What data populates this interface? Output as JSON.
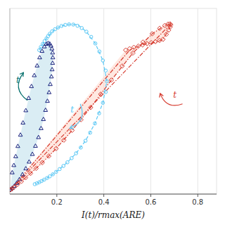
{
  "chart_data": {
    "type": "line",
    "xlabel": "I(t)/rmax(ARE)",
    "xlim": [
      0.0,
      0.88
    ],
    "ylim": [
      -0.02,
      1.05
    ],
    "xticks": [
      0.2,
      0.4,
      0.6,
      0.8
    ],
    "yticks": [],
    "tick_labels": "x",
    "grid": true,
    "series": [
      {
        "type": "area",
        "color": "#ADD8E6",
        "x": [
          0.003,
          0.01,
          0.019,
          0.029,
          0.041,
          0.054,
          0.068,
          0.082,
          0.096,
          0.109,
          0.122,
          0.133,
          0.143,
          0.152,
          0.16,
          0.167,
          0.172,
          0.177,
          0.18,
          0.182,
          0.183,
          0.182,
          0.179,
          0.175,
          0.17,
          0.163,
          0.155,
          0.147,
          0.137,
          0.127,
          0.116,
          0.104,
          0.092,
          0.08,
          0.068,
          0.056,
          0.045,
          0.034,
          0.025,
          0.017,
          0.01,
          0.003
        ],
        "values": [
          0.005,
          0.013,
          0.025,
          0.042,
          0.064,
          0.092,
          0.126,
          0.165,
          0.209,
          0.256,
          0.306,
          0.358,
          0.41,
          0.463,
          0.515,
          0.565,
          0.612,
          0.656,
          0.697,
          0.734,
          0.766,
          0.794,
          0.817,
          0.834,
          0.845,
          0.849,
          0.844,
          0.829,
          0.803,
          0.766,
          0.719,
          0.663,
          0.6,
          0.532,
          0.461,
          0.39,
          0.32,
          0.255,
          0.196,
          0.145,
          0.103,
          0.005
        ]
      },
      {
        "type": "area",
        "color": "#FFCCBC",
        "x": [
          0.003,
          0.01,
          0.02,
          0.033,
          0.049,
          0.067,
          0.088,
          0.112,
          0.138,
          0.166,
          0.197,
          0.23,
          0.265,
          0.303,
          0.344,
          0.387,
          0.432,
          0.478,
          0.524,
          0.567,
          0.606,
          0.638,
          0.66,
          0.674,
          0.682,
          0.682,
          0.685,
          0.683,
          0.676,
          0.666,
          0.652,
          0.637,
          0.62,
          0.602,
          0.584,
          0.565,
          0.547,
          0.528,
          0.51,
          0.493,
          0.003
        ],
        "values": [
          0.005,
          0.012,
          0.022,
          0.036,
          0.053,
          0.074,
          0.099,
          0.128,
          0.161,
          0.199,
          0.242,
          0.291,
          0.347,
          0.409,
          0.479,
          0.556,
          0.637,
          0.718,
          0.793,
          0.856,
          0.904,
          0.935,
          0.952,
          0.96,
          0.961,
          0.961,
          0.956,
          0.944,
          0.925,
          0.901,
          0.872,
          0.865,
          0.859,
          0.853,
          0.847,
          0.84,
          0.833,
          0.826,
          0.818,
          0.81,
          0.005
        ]
      },
      {
        "type": "line",
        "color": "#D63B2F",
        "line_style": "dashdot",
        "x": [
          0.003,
          0.685
        ],
        "values": [
          0.005,
          0.961
        ]
      },
      {
        "type": "line",
        "color": "#D63B2F",
        "line_style": "dashdot",
        "x": [
          0.003,
          0.51
        ],
        "values": [
          0.005,
          0.81
        ]
      },
      {
        "type": "line",
        "color": "#D63B2F",
        "line_style": "dashdot",
        "x": [
          0.003,
          0.02,
          0.049,
          0.088,
          0.138,
          0.197,
          0.265,
          0.344,
          0.432,
          0.524,
          0.606,
          0.66,
          0.682,
          0.685,
          0.676,
          0.652,
          0.62,
          0.584,
          0.547,
          0.51
        ],
        "values": [
          0.005,
          0.022,
          0.053,
          0.099,
          0.161,
          0.242,
          0.347,
          0.479,
          0.637,
          0.793,
          0.904,
          0.952,
          0.961,
          0.961,
          0.925,
          0.872,
          0.853,
          0.847,
          0.833,
          0.81
        ]
      },
      {
        "type": "line",
        "color": "#5BC8F5",
        "line_style": "dashed",
        "x": [
          0.125,
          0.14,
          0.163,
          0.192,
          0.22,
          0.252,
          0.288,
          0.326,
          0.364,
          0.396,
          0.413,
          0.396,
          0.362,
          0.322,
          0.282,
          0.245,
          0.212,
          0.183,
          0.158,
          0.135,
          0.115
        ],
        "values": [
          0.81,
          0.845,
          0.891,
          0.93,
          0.949,
          0.958,
          0.957,
          0.916,
          0.848,
          0.75,
          0.63,
          0.506,
          0.387,
          0.287,
          0.215,
          0.163,
          0.124,
          0.094,
          0.072,
          0.055,
          0.042
        ]
      },
      {
        "type": "scatter",
        "color": "#5BC8F5",
        "marker": "circle",
        "x": [
          0.125,
          0.132,
          0.14,
          0.148,
          0.156,
          0.163,
          0.17,
          0.18,
          0.192,
          0.205,
          0.22,
          0.236,
          0.252,
          0.27,
          0.288,
          0.306,
          0.326,
          0.346,
          0.364,
          0.381,
          0.396,
          0.408,
          0.413,
          0.408,
          0.396,
          0.38,
          0.362,
          0.342,
          0.322,
          0.302,
          0.282,
          0.263,
          0.245,
          0.228,
          0.212,
          0.197,
          0.183,
          0.17,
          0.158,
          0.146,
          0.135,
          0.125,
          0.115,
          0.106
        ],
        "values": [
          0.81,
          0.828,
          0.845,
          0.862,
          0.877,
          0.891,
          0.904,
          0.918,
          0.93,
          0.94,
          0.949,
          0.955,
          0.958,
          0.957,
          0.95,
          0.937,
          0.916,
          0.886,
          0.848,
          0.802,
          0.75,
          0.692,
          0.63,
          0.568,
          0.506,
          0.445,
          0.387,
          0.334,
          0.287,
          0.248,
          0.215,
          0.187,
          0.163,
          0.142,
          0.124,
          0.108,
          0.094,
          0.082,
          0.072,
          0.063,
          0.055,
          0.048,
          0.042,
          0.037
        ]
      },
      {
        "type": "scatter",
        "color": "#1A237E",
        "marker": "triangle",
        "x": [
          0.003,
          0.01,
          0.019,
          0.029,
          0.041,
          0.054,
          0.068,
          0.082,
          0.096,
          0.109,
          0.122,
          0.133,
          0.143,
          0.152,
          0.16,
          0.167,
          0.172,
          0.177,
          0.18,
          0.182,
          0.183,
          0.182,
          0.179,
          0.175,
          0.17,
          0.163,
          0.155,
          0.147,
          0.137,
          0.127,
          0.116,
          0.104,
          0.092,
          0.08,
          0.068,
          0.056,
          0.045,
          0.034,
          0.025,
          0.017,
          0.01
        ],
        "values": [
          0.005,
          0.013,
          0.025,
          0.042,
          0.064,
          0.092,
          0.126,
          0.165,
          0.209,
          0.256,
          0.306,
          0.358,
          0.41,
          0.463,
          0.515,
          0.565,
          0.612,
          0.656,
          0.697,
          0.734,
          0.766,
          0.794,
          0.817,
          0.834,
          0.845,
          0.849,
          0.844,
          0.829,
          0.803,
          0.766,
          0.719,
          0.663,
          0.6,
          0.532,
          0.461,
          0.39,
          0.32,
          0.255,
          0.196,
          0.145,
          0.103
        ]
      },
      {
        "type": "scatter",
        "color": "#D63B2F",
        "marker": "diamond",
        "x": [
          0.003,
          0.01,
          0.02,
          0.033,
          0.049,
          0.067,
          0.088,
          0.112,
          0.138,
          0.166,
          0.197,
          0.23,
          0.265,
          0.303,
          0.344,
          0.387,
          0.432,
          0.478,
          0.524,
          0.567,
          0.606,
          0.638,
          0.66,
          0.674,
          0.682,
          0.685,
          0.683,
          0.676,
          0.666,
          0.652,
          0.637,
          0.62,
          0.602,
          0.584,
          0.565,
          0.547,
          0.528,
          0.51,
          0.493
        ],
        "values": [
          0.005,
          0.012,
          0.022,
          0.036,
          0.053,
          0.074,
          0.099,
          0.128,
          0.161,
          0.199,
          0.242,
          0.291,
          0.347,
          0.409,
          0.479,
          0.556,
          0.637,
          0.718,
          0.793,
          0.856,
          0.904,
          0.935,
          0.952,
          0.96,
          0.961,
          0.956,
          0.944,
          0.925,
          0.901,
          0.872,
          0.865,
          0.859,
          0.853,
          0.847,
          0.84,
          0.833,
          0.826,
          0.818,
          0.81
        ]
      }
    ],
    "annotations": [
      {
        "text": "t",
        "x": 0.027,
        "y": 0.62,
        "color": "#006D6A",
        "arrow_from": [
          0.075,
          0.52
        ],
        "arrow_to": [
          0.058,
          0.68
        ]
      },
      {
        "text": "t",
        "x": 0.258,
        "y": 0.45,
        "color": "#5BC8F5",
        "arrow_from": [
          0.3,
          0.5
        ],
        "arrow_to": [
          0.255,
          0.36
        ]
      },
      {
        "text": "t",
        "x": 0.695,
        "y": 0.535,
        "color": "#D63B2F",
        "arrow_from": [
          0.735,
          0.5
        ],
        "arrow_to": [
          0.64,
          0.56
        ]
      }
    ]
  }
}
